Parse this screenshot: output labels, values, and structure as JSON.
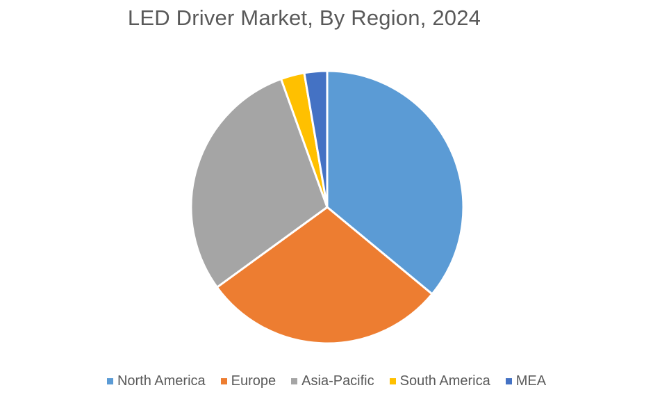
{
  "chart_data": {
    "type": "pie",
    "title": "LED Driver Market, By Region, 2024",
    "categories": [
      "North America",
      "Europe",
      "Asia-Pacific",
      "South America",
      "MEA"
    ],
    "values": [
      36,
      29,
      29.5,
      2.8,
      2.7
    ],
    "colors": [
      "#5B9BD5",
      "#ED7D31",
      "#A5A5A5",
      "#FFC000",
      "#4472C4"
    ],
    "start_angle": "12 o'clock",
    "direction": "clockwise",
    "legend_position": "bottom"
  }
}
